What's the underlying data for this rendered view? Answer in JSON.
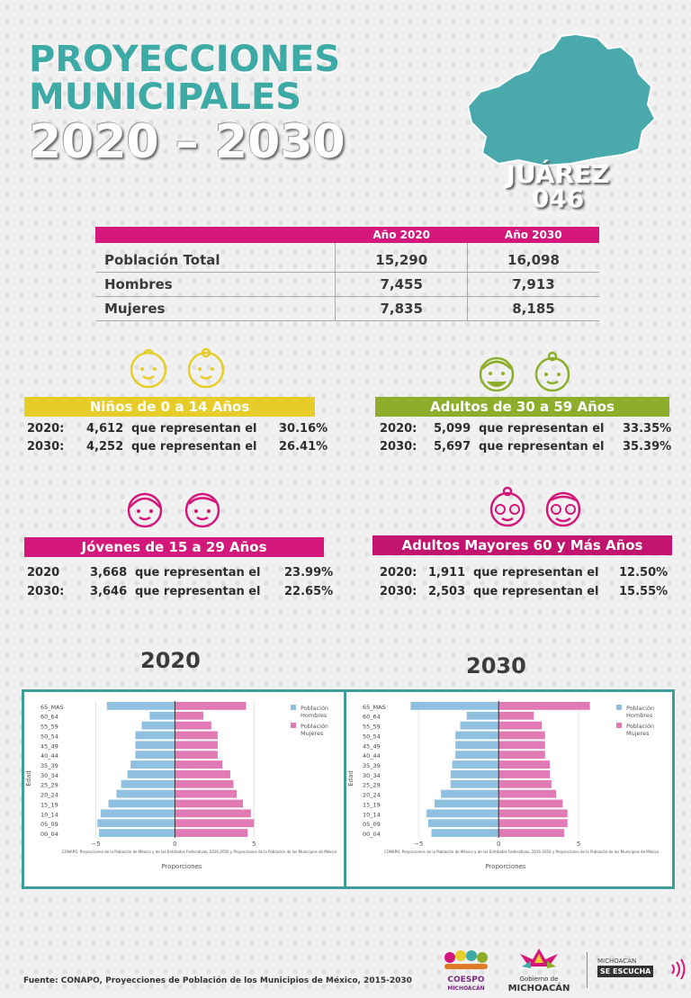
{
  "header": {
    "title_line1": "PROYECCIONES",
    "title_line2": "MUNICIPALES",
    "title_line3": "2020 – 2030",
    "municipio": "JUÁREZ",
    "clave": "046"
  },
  "poblacion": {
    "col_2020": "Año 2020",
    "col_2030": "Año 2030",
    "rows": [
      {
        "label": "Población Total",
        "v2020": "15,290",
        "v2030": "16,098"
      },
      {
        "label": "Hombres",
        "v2020": "7,455",
        "v2030": "7,913"
      },
      {
        "label": "Mujeres",
        "v2020": "7,835",
        "v2030": "8,185"
      }
    ]
  },
  "grupos": {
    "ninos": {
      "title": "Niños de 0 a 14 Años",
      "r2020": {
        "year": "2020:",
        "value": "4,612",
        "text": "que representan el",
        "pct": "30.16%"
      },
      "r2030": {
        "year": "2030:",
        "value": "4,252",
        "text": "que representan el",
        "pct": "26.41%"
      }
    },
    "adultos": {
      "title": "Adultos de 30 a 59 Años",
      "r2020": {
        "year": "2020:",
        "value": "5,099",
        "text": "que representan el",
        "pct": "33.35%"
      },
      "r2030": {
        "year": "2030:",
        "value": "5,697",
        "text": "que representan el",
        "pct": "35.39%"
      }
    },
    "jovenes": {
      "title": "Jóvenes de 15 a 29 Años",
      "r2020": {
        "year": "2020",
        "value": "3,668",
        "text": "que representan el",
        "pct": "23.99%"
      },
      "r2030": {
        "year": "2030:",
        "value": "3,646",
        "text": "que representan el",
        "pct": "22.65%"
      }
    },
    "mayores": {
      "title": "Adultos Mayores  60 y Más Años",
      "r2020": {
        "year": "2020:",
        "value": "1,911",
        "text": "que representan el",
        "pct": "12.50%"
      },
      "r2030": {
        "year": "2030:",
        "value": "2,503",
        "text": "que representan el",
        "pct": "15.55%"
      }
    }
  },
  "charts": {
    "year_2020": "2020",
    "year_2030": "2030"
  },
  "chart_data": [
    {
      "type": "bar",
      "orientation": "horizontal",
      "categories": [
        "00_04",
        "05_09",
        "10_14",
        "15_19",
        "20_24",
        "25_29",
        "30_34",
        "35_39",
        "40_44",
        "45_49",
        "50_54",
        "55_59",
        "60_64",
        "65_MAS"
      ],
      "series": [
        {
          "name": "Población Hombres",
          "values": [
            -4.8,
            -4.9,
            -4.7,
            -4.2,
            -3.7,
            -3.4,
            -3.0,
            -2.8,
            -2.5,
            -2.5,
            -2.5,
            -2.1,
            -1.6,
            -4.3
          ]
        },
        {
          "name": "Población Mujeres",
          "values": [
            4.6,
            5.0,
            4.8,
            4.3,
            3.9,
            3.7,
            3.5,
            3.0,
            2.7,
            2.7,
            2.7,
            2.3,
            1.8,
            4.5
          ]
        }
      ],
      "xlabel": "Proporciones",
      "ylabel": "Edad",
      "xticks": [
        "−5",
        "0",
        "5"
      ],
      "xlim": [
        -8.5,
        10.5
      ],
      "legend": "top-right",
      "source_note": "CONAPO. Proyecciones de la Población de México y de las Entidades Federativas, 2016-2050 y Proyecciones de la Población de los Municipios de México"
    },
    {
      "type": "bar",
      "orientation": "horizontal",
      "categories": [
        "00_04",
        "05_09",
        "10_14",
        "15_19",
        "20_24",
        "25_29",
        "30_34",
        "35_39",
        "40_44",
        "45_49",
        "50_54",
        "55_59",
        "60_64",
        "65_MAS"
      ],
      "series": [
        {
          "name": "Población Hombres",
          "values": [
            -4.2,
            -4.4,
            -4.5,
            -4.0,
            -3.6,
            -3.0,
            -3.0,
            -2.9,
            -2.7,
            -2.7,
            -2.7,
            -2.4,
            -2.0,
            -5.5
          ]
        },
        {
          "name": "Población Mujeres",
          "values": [
            4.1,
            4.3,
            4.3,
            4.0,
            3.6,
            3.3,
            3.2,
            3.2,
            2.9,
            2.9,
            2.9,
            2.7,
            2.2,
            5.7
          ]
        }
      ],
      "xlabel": "Proporciones",
      "ylabel": "Edad",
      "xticks": [
        "−5",
        "0",
        "5"
      ],
      "xlim": [
        -8.5,
        10.5
      ],
      "legend": "top-right",
      "source_note": "CONAPO. Proyecciones de la Población de México y de las Entidades Federativas, 2016-2050 y Proyecciones de la Población de los Municipios de México"
    }
  ],
  "footer": {
    "fuente": "Fuente: CONAPO, Proyecciones de Población de los Municipios de México, 2015-2030",
    "logo1_line1": "COESPO",
    "logo1_line2": "MICHOACÁN",
    "logo2_line1": "Gobierno de",
    "logo2_line2": "MICHOACÁN",
    "logo3_line1": "MICHOACÁN",
    "logo3_line2": "SE ESCUCHA"
  },
  "colors": {
    "teal": "#3eaaa5",
    "magenta": "#d4187b",
    "yellow": "#e6cd2a",
    "green": "#8dae2a",
    "male_bar": "#8fc0e0",
    "female_bar": "#e27bb5"
  }
}
